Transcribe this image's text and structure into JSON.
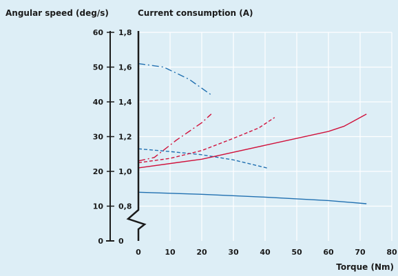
{
  "chart_data": {
    "type": "line",
    "ylabel_left": "Angular speed (deg/s)",
    "ylabel_right": "Current consumption (A)",
    "xlabel": "Torque (Nm)",
    "xlim": [
      0,
      80
    ],
    "x_ticks": [
      "0",
      "10",
      "20",
      "30",
      "40",
      "50",
      "60",
      "70",
      "80"
    ],
    "speed_ylim": [
      0,
      60
    ],
    "speed_ticks": [
      "0",
      "10",
      "20",
      "30",
      "40",
      "50",
      "60"
    ],
    "current_ticks": [
      "0",
      "0,8",
      "1,0",
      "1,2",
      "1,4",
      "1,6",
      "1,8"
    ],
    "current_scale": {
      "values": [
        0.8,
        1.0,
        1.2,
        1.4,
        1.6,
        1.8
      ]
    },
    "grid": true,
    "axis_break": "between 0 and 0,8 on current axis",
    "series": [
      {
        "axis": "speed",
        "style": "solid",
        "color": "#1f6fb0",
        "x": [
          0,
          20,
          40,
          60,
          72
        ],
        "y": [
          14,
          13.4,
          12.6,
          11.6,
          10.7
        ]
      },
      {
        "axis": "speed",
        "style": "dashed",
        "color": "#1f6fb0",
        "x": [
          0,
          10,
          20,
          30,
          41
        ],
        "y": [
          26.5,
          25.7,
          24.8,
          23.3,
          20.9
        ]
      },
      {
        "axis": "speed",
        "style": "dashdot",
        "color": "#1f6fb0",
        "x": [
          0,
          8,
          16,
          23
        ],
        "y": [
          51,
          50,
          46.5,
          42
        ]
      },
      {
        "axis": "current",
        "style": "solid",
        "color": "#d0103a",
        "x": [
          0,
          20,
          40,
          60,
          65,
          72
        ],
        "y": [
          1.02,
          1.07,
          1.15,
          1.23,
          1.26,
          1.33
        ]
      },
      {
        "axis": "current",
        "style": "dashed",
        "color": "#d0103a",
        "x": [
          0,
          10,
          20,
          30,
          38,
          43
        ],
        "y": [
          1.05,
          1.075,
          1.12,
          1.19,
          1.25,
          1.31
        ]
      },
      {
        "axis": "current",
        "style": "dashdot",
        "color": "#d0103a",
        "x": [
          0,
          5,
          12,
          20,
          23
        ],
        "y": [
          1.06,
          1.08,
          1.18,
          1.28,
          1.33
        ]
      }
    ]
  }
}
